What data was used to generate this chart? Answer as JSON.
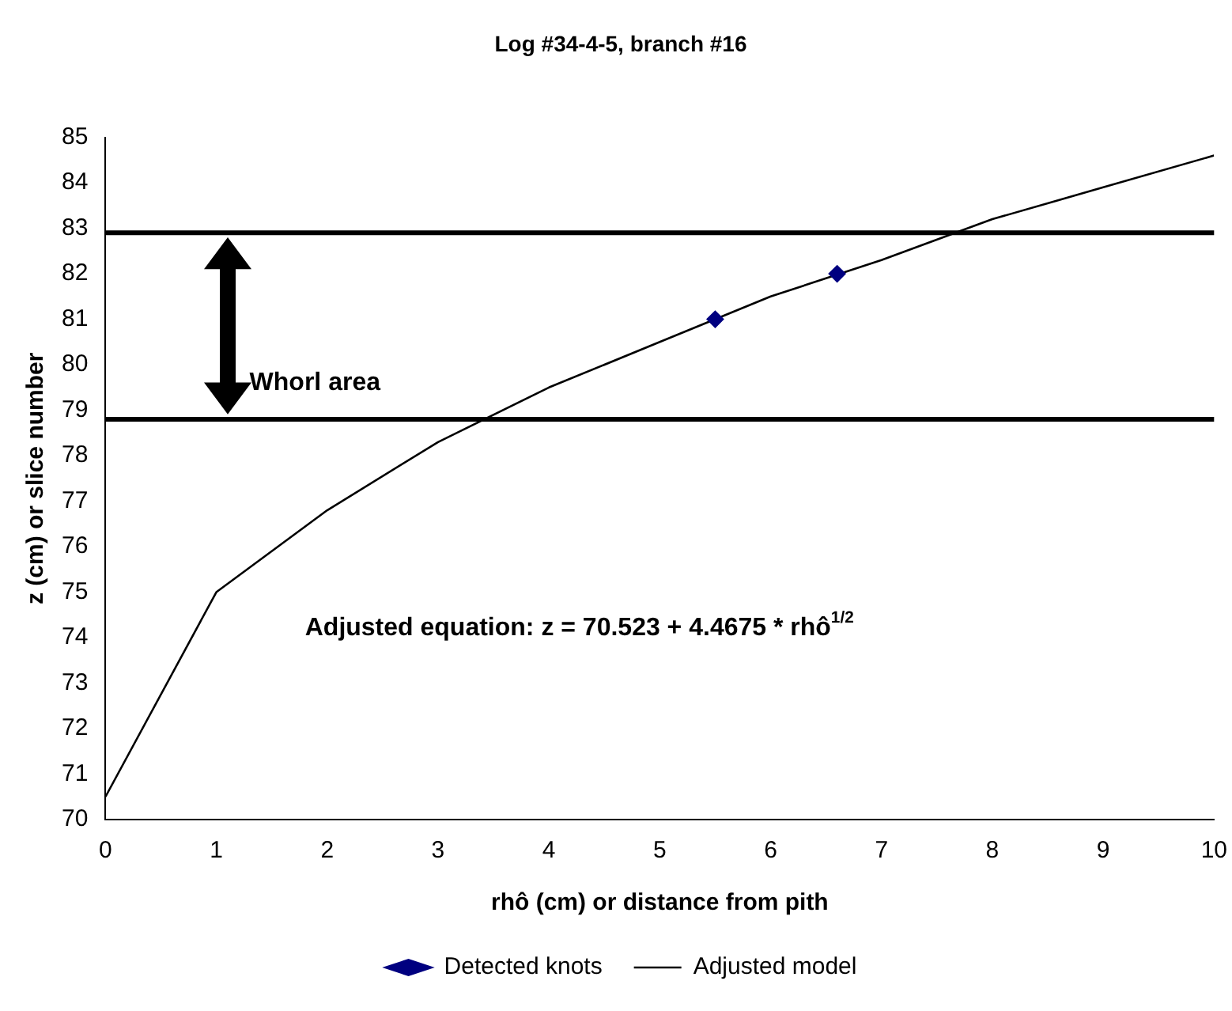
{
  "chart_data": {
    "type": "line",
    "title": "Log #34-4-5, branch #16",
    "xlabel": "rhô (cm) or distance from pith",
    "ylabel": "z (cm) or slice number",
    "x": [
      0,
      1,
      2,
      3,
      4,
      5,
      6,
      7,
      8,
      9,
      10
    ],
    "series": [
      {
        "name": "Detected knots",
        "type": "scatter",
        "color": "#000080",
        "marker": "diamond",
        "x": [
          5.5,
          6.6
        ],
        "values": [
          81,
          82
        ]
      },
      {
        "name": "Adjusted model",
        "color": "#000000",
        "marker": "none",
        "line_style": "solid",
        "values": [
          70.5,
          75.0,
          76.8,
          78.3,
          79.5,
          80.5,
          81.5,
          82.3,
          83.2,
          83.9,
          84.6
        ]
      }
    ],
    "xlim": [
      0,
      10
    ],
    "xticks": [
      0,
      1,
      2,
      3,
      4,
      5,
      6,
      7,
      8,
      9,
      10
    ],
    "ylim": [
      70,
      85
    ],
    "yticks": [
      70,
      71,
      72,
      73,
      74,
      75,
      76,
      77,
      78,
      79,
      80,
      81,
      82,
      83,
      84,
      85
    ],
    "ref_lines": [
      {
        "axis": "y",
        "value": 82.9,
        "color": "#000000"
      },
      {
        "axis": "y",
        "value": 78.8,
        "color": "#000000"
      }
    ],
    "annotations": [
      "Whorl area",
      "Adjusted equation: z = 70.523 + 4.4675 * rhô$^{1/2}$"
    ],
    "grid": false,
    "legend": "bottom"
  }
}
